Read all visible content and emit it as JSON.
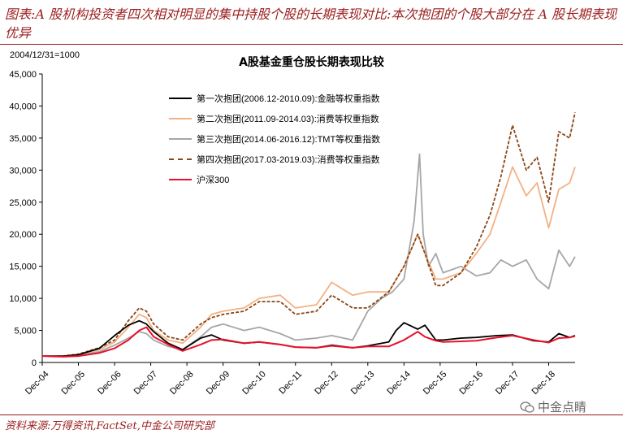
{
  "header": {
    "text": "图表:A 股机构投资者四次相对明显的集中持股个股的长期表现对比:本次抱团的个股大部分在 A 股长期表现优异"
  },
  "footer": {
    "source": "资料来源:万得资讯,FactSet,中金公司研究部"
  },
  "watermark": {
    "text": "中金点睛",
    "icon": "wechat-icon"
  },
  "chart_data": {
    "type": "line",
    "title": "A股基金重仓股长期表现比较",
    "ylabel": "2004/12/31=1000",
    "xlabel": "",
    "ylim": [
      0,
      45000
    ],
    "yticks": [
      "0",
      "5,000",
      "10,000",
      "15,000",
      "20,000",
      "25,000",
      "30,000",
      "35,000",
      "40,000",
      "45,000"
    ],
    "yticks_values": [
      0,
      5000,
      10000,
      15000,
      20000,
      25000,
      30000,
      35000,
      40000,
      45000
    ],
    "xticks": [
      "Dec-04",
      "Dec-05",
      "Dec-06",
      "Dec-07",
      "Dec-08",
      "Dec-09",
      "Dec-10",
      "Dec-11",
      "Dec-12",
      "Dec-13",
      "Dec-14",
      "Dec-15",
      "Dec-16",
      "Dec-17",
      "Dec-18"
    ],
    "xlim": [
      2004.92,
      2019.65
    ],
    "legend_position": "top-left",
    "series": [
      {
        "name": "第一次抱团(2006.12-2010.09):金融等权重指数",
        "color": "#000000",
        "style": "solid",
        "x": [
          2004.92,
          2005.5,
          2005.92,
          2006.5,
          2006.92,
          2007.3,
          2007.6,
          2007.8,
          2008.0,
          2008.4,
          2008.8,
          2009.3,
          2009.6,
          2009.92,
          2010.5,
          2010.92,
          2011.5,
          2011.92,
          2012.5,
          2012.92,
          2013.5,
          2013.92,
          2014.5,
          2014.7,
          2014.92,
          2015.3,
          2015.5,
          2015.8,
          2016.0,
          2016.5,
          2016.92,
          2017.5,
          2017.92,
          2018.5,
          2018.92,
          2019.2,
          2019.5,
          2019.65
        ],
        "values": [
          1000,
          1000,
          1200,
          2200,
          4200,
          5800,
          6500,
          6000,
          4800,
          3000,
          2000,
          3800,
          4300,
          3500,
          3000,
          3200,
          2800,
          2400,
          2300,
          2700,
          2300,
          2600,
          3200,
          5000,
          6200,
          5200,
          5800,
          3500,
          3500,
          3800,
          3900,
          4200,
          4300,
          3400,
          3200,
          4500,
          3900,
          4200
        ]
      },
      {
        "name": "第二次抱团(2011.09-2014.03):消费等权重指数",
        "color": "#f2b184",
        "style": "solid",
        "x": [
          2004.92,
          2005.5,
          2005.92,
          2006.5,
          2006.92,
          2007.3,
          2007.6,
          2007.8,
          2008.0,
          2008.4,
          2008.8,
          2009.3,
          2009.6,
          2009.92,
          2010.5,
          2010.92,
          2011.5,
          2011.92,
          2012.5,
          2012.92,
          2013.5,
          2013.92,
          2014.5,
          2014.92,
          2015.3,
          2015.5,
          2015.8,
          2016.0,
          2016.5,
          2016.92,
          2017.3,
          2017.6,
          2017.92,
          2018.3,
          2018.6,
          2018.92,
          2019.2,
          2019.5,
          2019.65
        ],
        "values": [
          1000,
          1000,
          1200,
          2000,
          3200,
          5500,
          7500,
          7000,
          5000,
          3500,
          3000,
          5500,
          7500,
          8000,
          8500,
          10000,
          10500,
          8500,
          9000,
          12500,
          10500,
          11000,
          11000,
          15000,
          20000,
          17000,
          13000,
          13000,
          14000,
          17000,
          20000,
          25000,
          30500,
          26000,
          28000,
          21000,
          27000,
          28000,
          30500
        ]
      },
      {
        "name": "第三次抱团(2014.06-2016.12):TMT等权重指数",
        "color": "#a6a6a6",
        "style": "solid",
        "x": [
          2004.92,
          2005.5,
          2005.92,
          2006.5,
          2006.92,
          2007.3,
          2007.6,
          2007.8,
          2008.0,
          2008.4,
          2008.8,
          2009.3,
          2009.6,
          2009.92,
          2010.5,
          2010.92,
          2011.5,
          2011.92,
          2012.5,
          2012.92,
          2013.5,
          2013.92,
          2014.3,
          2014.6,
          2014.92,
          2015.2,
          2015.35,
          2015.45,
          2015.6,
          2015.8,
          2016.0,
          2016.5,
          2016.92,
          2017.3,
          2017.6,
          2017.92,
          2018.3,
          2018.6,
          2018.92,
          2019.2,
          2019.5,
          2019.65
        ],
        "values": [
          1000,
          1000,
          1100,
          1700,
          2700,
          3800,
          4800,
          4500,
          3500,
          2500,
          2000,
          4000,
          5500,
          6000,
          5000,
          5500,
          4500,
          3500,
          3800,
          4200,
          3500,
          8000,
          10000,
          11000,
          13000,
          22000,
          32500,
          20000,
          15000,
          17000,
          14000,
          15000,
          13500,
          14000,
          16000,
          15000,
          16000,
          13000,
          11500,
          17500,
          15000,
          16500
        ]
      },
      {
        "name": "第四次抱团(2017.03-2019.03):消费等权重指数",
        "color": "#8b4513",
        "style": "dashed",
        "x": [
          2004.92,
          2005.5,
          2005.92,
          2006.5,
          2006.92,
          2007.3,
          2007.6,
          2007.8,
          2008.0,
          2008.4,
          2008.8,
          2009.3,
          2009.6,
          2009.92,
          2010.5,
          2010.92,
          2011.5,
          2011.92,
          2012.5,
          2012.92,
          2013.5,
          2013.92,
          2014.5,
          2014.92,
          2015.3,
          2015.5,
          2015.8,
          2016.0,
          2016.5,
          2016.92,
          2017.3,
          2017.6,
          2017.92,
          2018.3,
          2018.6,
          2018.92,
          2019.2,
          2019.5,
          2019.65
        ],
        "values": [
          1000,
          1000,
          1300,
          2300,
          3500,
          6500,
          8500,
          8000,
          6000,
          4000,
          3500,
          6000,
          7000,
          7500,
          8000,
          9500,
          9500,
          7500,
          8000,
          10500,
          8500,
          8500,
          11000,
          15000,
          20000,
          17000,
          12000,
          12000,
          14000,
          18000,
          23000,
          29000,
          37000,
          30000,
          32000,
          25000,
          36000,
          35000,
          39000
        ]
      },
      {
        "name": "沪深300",
        "color": "#e8112d",
        "style": "solid",
        "x": [
          2004.92,
          2005.5,
          2005.92,
          2006.5,
          2006.92,
          2007.3,
          2007.6,
          2007.8,
          2008.0,
          2008.4,
          2008.8,
          2009.3,
          2009.6,
          2009.92,
          2010.5,
          2010.92,
          2011.5,
          2011.92,
          2012.5,
          2012.92,
          2013.5,
          2013.92,
          2014.5,
          2014.92,
          2015.3,
          2015.5,
          2015.8,
          2016.0,
          2016.5,
          2016.92,
          2017.5,
          2017.92,
          2018.5,
          2018.92,
          2019.2,
          2019.5,
          2019.65
        ],
        "values": [
          1000,
          900,
          1000,
          1500,
          2200,
          3500,
          5000,
          5500,
          4000,
          2800,
          1800,
          2800,
          3500,
          3600,
          3000,
          3200,
          2800,
          2400,
          2300,
          2600,
          2300,
          2500,
          2500,
          3500,
          4800,
          4000,
          3400,
          3200,
          3300,
          3400,
          3900,
          4200,
          3500,
          3100,
          3800,
          3900,
          4100
        ]
      }
    ]
  }
}
